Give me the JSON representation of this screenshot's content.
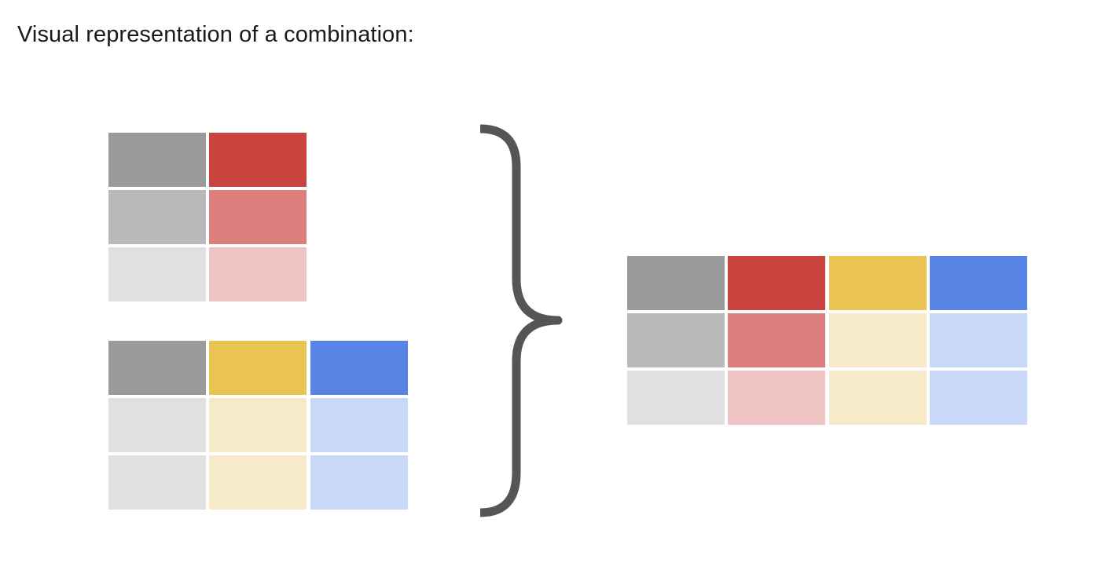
{
  "title": "Visual representation of a combination:",
  "colors": {
    "gray_dark": "#9a9a9a",
    "gray_mid": "#b9b9b9",
    "gray_light": "#e0e0e0",
    "red": "#c9433f",
    "red_mid": "#dc7e7c",
    "red_light": "#efc4c3",
    "yellow": "#e9c452",
    "yellow_light": "#f7eac8",
    "blue": "#5884e6",
    "blue_light": "#c9d8f6",
    "brace": "#555555"
  },
  "tables": {
    "input_a": {
      "rows": [
        [
          "gray_dark",
          "red"
        ],
        [
          "gray_mid",
          "red_mid"
        ],
        [
          "gray_light",
          "red_light"
        ]
      ]
    },
    "input_b": {
      "rows": [
        [
          "gray_dark",
          "yellow",
          "blue"
        ],
        [
          "gray_light",
          "yellow_light",
          "blue_light"
        ],
        [
          "gray_light",
          "yellow_light",
          "blue_light"
        ]
      ]
    },
    "result": {
      "rows": [
        [
          "gray_dark",
          "red",
          "yellow",
          "blue"
        ],
        [
          "gray_mid",
          "red_mid",
          "yellow_light",
          "blue_light"
        ],
        [
          "gray_light",
          "red_light",
          "yellow_light",
          "blue_light"
        ]
      ]
    }
  },
  "brace_icon": "right-curly-brace-icon"
}
